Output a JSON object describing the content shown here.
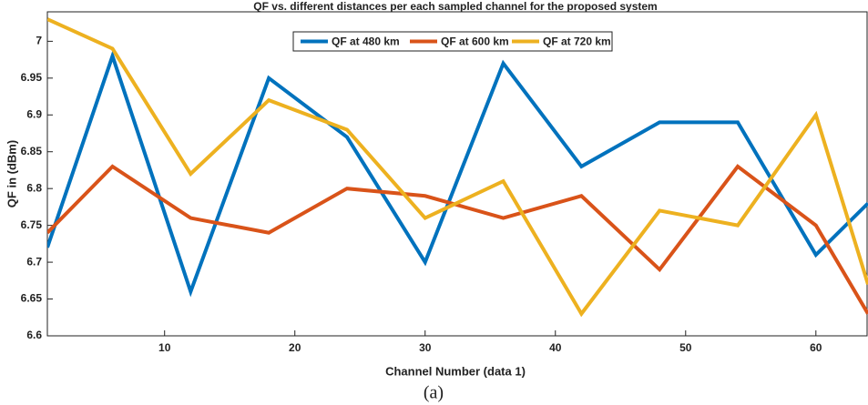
{
  "chart_data": {
    "type": "line",
    "title": "QF vs. different distances per each sampled channel for the proposed system",
    "xlabel": "Channel Number (data 1)",
    "ylabel": "QF in (dBm)",
    "caption": "(a)",
    "x": [
      1,
      6,
      12,
      18,
      24,
      30,
      36,
      42,
      48,
      54,
      60,
      64
    ],
    "series": [
      {
        "name": "QF at 480 km",
        "color": "#0072bd",
        "values": [
          6.72,
          6.98,
          6.66,
          6.95,
          6.87,
          6.7,
          6.97,
          6.83,
          6.89,
          6.89,
          6.71,
          6.78
        ]
      },
      {
        "name": "QF at 600 km",
        "color": "#d95319",
        "values": [
          6.74,
          6.83,
          6.76,
          6.74,
          6.8,
          6.79,
          6.76,
          6.79,
          6.69,
          6.83,
          6.75,
          6.63
        ]
      },
      {
        "name": "QF at 720 km",
        "color": "#edb120",
        "values": [
          7.03,
          6.99,
          6.82,
          6.92,
          6.88,
          6.76,
          6.81,
          6.63,
          6.77,
          6.75,
          6.9,
          6.67
        ]
      }
    ],
    "xlim": [
      1,
      64
    ],
    "xticks": [
      10,
      20,
      30,
      40,
      50,
      60
    ],
    "ylim": [
      6.6,
      7.04
    ],
    "yticks": [
      6.6,
      6.65,
      6.7,
      6.75,
      6.8,
      6.85,
      6.9,
      6.95,
      7
    ],
    "legend": "top"
  }
}
